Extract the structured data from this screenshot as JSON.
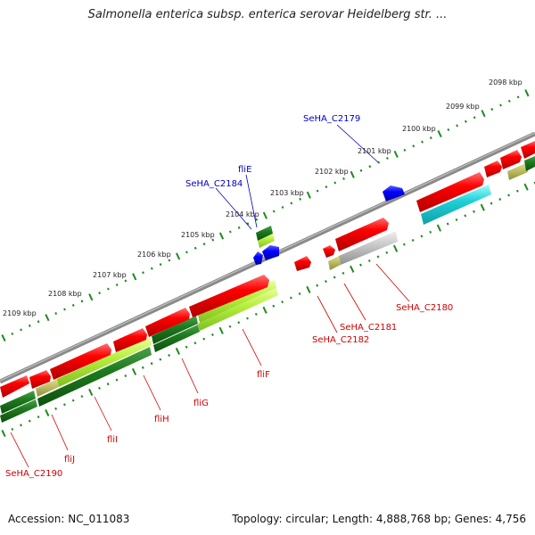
{
  "title": "Salmonella enterica subsp. enterica serovar Heidelberg str. ...",
  "footer": {
    "accession": "Accession: NC_011083",
    "summary": "Topology: circular; Length: 4,888,768 bp; Genes: 4,756"
  },
  "colors": {
    "backbone": "#808080",
    "forward_cds": "#ff0000",
    "reverse_cds": "#0000ff",
    "rna": "#00c8d2",
    "cog_dark": "#1e7a1e",
    "cog_light": "#b8f040",
    "cog_gray": "#c0c0c0",
    "tick": "#1e8a1e",
    "forward_label": "#d00000",
    "reverse_label": "#0000c0"
  },
  "tick_labels": [
    "2098 kbp",
    "2099 kbp",
    "2100 kbp",
    "2101 kbp",
    "2102 kbp",
    "2103 kbp",
    "2104 kbp",
    "2105 kbp",
    "2106 kbp",
    "2107 kbp",
    "2108 kbp",
    "2109 kbp"
  ],
  "gene_labels_forward": [
    "SeHA_C2180",
    "SeHA_C2181",
    "SeHA_C2182",
    "fliF",
    "fliG",
    "fliH",
    "fliI",
    "fliJ",
    "SeHA_C2190"
  ],
  "gene_labels_reverse": [
    "SeHA_C2179",
    "SeHA_C2184",
    "fliE"
  ]
}
